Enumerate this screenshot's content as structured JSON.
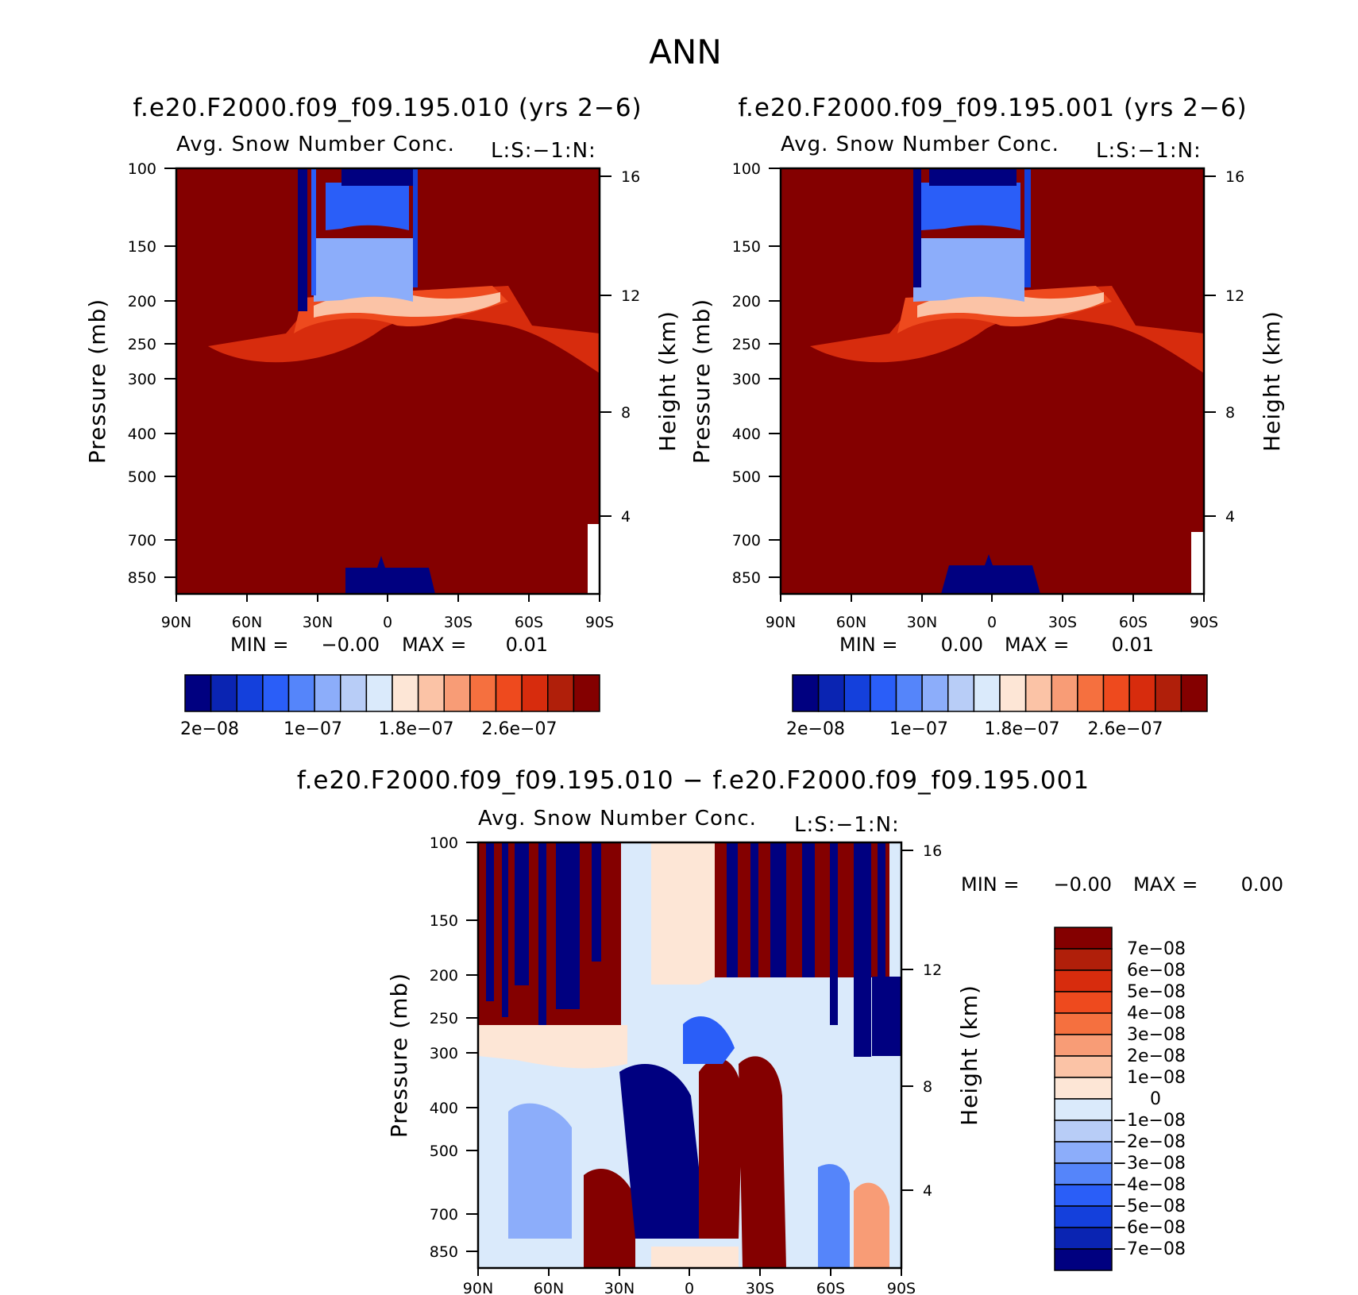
{
  "figure_title": "ANN",
  "chart_data": [
    {
      "type": "heatmap",
      "title": "f.e20.F2000.f09_f09.195.010 (yrs 2−6)",
      "subtitle": "Avg. Snow Number Conc.",
      "subtitle_right": "L:S:−1:N:",
      "xlabel": "",
      "ylabel": "Pressure (mb)",
      "ylabel_right": "Height (km)",
      "x_ticks": [
        "90N",
        "60N",
        "30N",
        "0",
        "30S",
        "60S",
        "90S"
      ],
      "y_ticks": [
        "100",
        "150",
        "200",
        "250",
        "300",
        "400",
        "500",
        "700",
        "850"
      ],
      "y_ticks_right": [
        "16",
        "12",
        "8",
        "4"
      ],
      "min_label": "MIN =",
      "min_value": "−0.00",
      "max_label": "MAX =",
      "max_value": "0.01",
      "colorbar_labels": [
        "2e−08",
        "1e−07",
        "1.8e−07",
        "2.6e−07"
      ],
      "colorbar_orientation": "horizontal",
      "colors": [
        "#000080",
        "#0a24b2",
        "#1440dc",
        "#2a5ef8",
        "#5585fa",
        "#8cadfa",
        "#b8cdf7",
        "#daeafb",
        "#fde6d6",
        "#fbc3a6",
        "#f89c76",
        "#f5703f",
        "#ee4a1e",
        "#d72c0d",
        "#b01f0a",
        "#840000"
      ]
    },
    {
      "type": "heatmap",
      "title": "f.e20.F2000.f09_f09.195.001 (yrs 2−6)",
      "subtitle": "Avg. Snow Number Conc.",
      "subtitle_right": "L:S:−1:N:",
      "xlabel": "",
      "ylabel": "Pressure (mb)",
      "ylabel_right": "Height (km)",
      "x_ticks": [
        "90N",
        "60N",
        "30N",
        "0",
        "30S",
        "60S",
        "90S"
      ],
      "y_ticks": [
        "100",
        "150",
        "200",
        "250",
        "300",
        "400",
        "500",
        "700",
        "850"
      ],
      "y_ticks_right": [
        "16",
        "12",
        "8",
        "4"
      ],
      "min_label": "MIN =",
      "min_value": "0.00",
      "max_label": "MAX =",
      "max_value": "0.01",
      "colorbar_labels": [
        "2e−08",
        "1e−07",
        "1.8e−07",
        "2.6e−07"
      ],
      "colorbar_orientation": "horizontal"
    },
    {
      "type": "heatmap",
      "title": "f.e20.F2000.f09_f09.195.010 − f.e20.F2000.f09_f09.195.001",
      "subtitle": "Avg. Snow Number Conc.",
      "subtitle_right": "L:S:−1:N:",
      "xlabel": "",
      "ylabel": "Pressure (mb)",
      "ylabel_right": "Height (km)",
      "x_ticks": [
        "90N",
        "60N",
        "30N",
        "0",
        "30S",
        "60S",
        "90S"
      ],
      "y_ticks": [
        "100",
        "150",
        "200",
        "250",
        "300",
        "400",
        "500",
        "700",
        "850"
      ],
      "y_ticks_right": [
        "16",
        "12",
        "8",
        "4"
      ],
      "min_label": "MIN =",
      "min_value": "−0.00",
      "max_label": "MAX =",
      "max_value": "0.00",
      "colorbar_labels": [
        "7e−08",
        "6e−08",
        "5e−08",
        "4e−08",
        "3e−08",
        "2e−08",
        "1e−08",
        "0",
        "−1e−08",
        "−2e−08",
        "−3e−08",
        "−4e−08",
        "−5e−08",
        "−6e−08",
        "−7e−08"
      ],
      "colorbar_orientation": "vertical",
      "colors": [
        "#840000",
        "#b01f0a",
        "#d72c0d",
        "#ee4a1e",
        "#f5703f",
        "#f89c76",
        "#fbc3a6",
        "#fde6d6",
        "#daeafb",
        "#b8cdf7",
        "#8cadfa",
        "#5585fa",
        "#2a5ef8",
        "#1440dc",
        "#0a24b2",
        "#000080"
      ]
    }
  ]
}
